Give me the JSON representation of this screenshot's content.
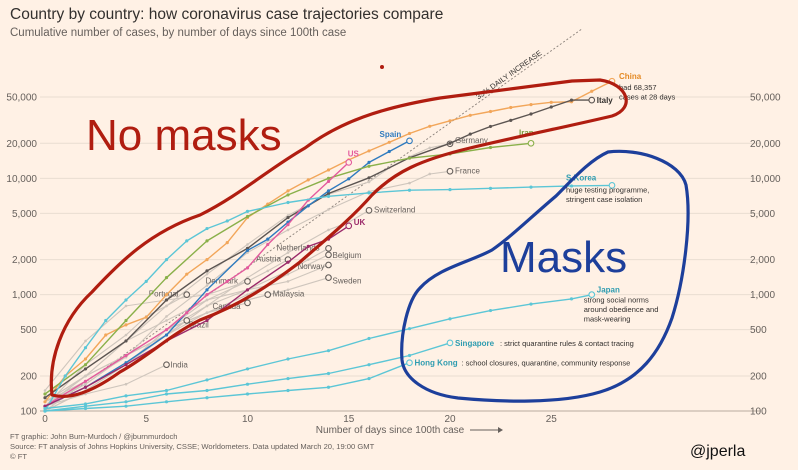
{
  "title": "Country by country: how coronavirus case trajectories compare",
  "subtitle": "Cumulative number of cases, by number of days since 100th case",
  "footer": [
    "FT graphic: John Burn-Murdoch / @jburnmurdoch",
    "Source: FT analysis of Johns Hopkins University, CSSE; Worldometers. Data updated March 20, 19:00 GMT",
    "© FT"
  ],
  "handle": "@jperla",
  "annotations": {
    "no_masks": "No masks",
    "masks": "Masks",
    "reference_line": "33% DAILY INCREASE",
    "x_arrow": "⟶"
  },
  "colors": {
    "background": "#fff1e5",
    "grid": "#e9ddd1",
    "no_masks_outline": "#b01d10",
    "masks_outline": "#1d3f9b",
    "grey_lines": "#cfc6bd",
    "teal": "#5cc6d6",
    "highlight_pink": "#d84c8c",
    "china": "#f2a65a",
    "spain": "#2f7bbf",
    "iran": "#8ab04a",
    "us": "#e45a9d",
    "uk": "#9b2a6a",
    "italy": "#5c5552"
  },
  "chart_data": {
    "type": "line",
    "title": "Country by country: how coronavirus case trajectories compare",
    "subtitle": "Cumulative number of cases, by number of days since 100th case",
    "xlabel": "Number of days since 100th case",
    "ylabel": "",
    "yscale": "log",
    "xlim": [
      0,
      31
    ],
    "ylim": [
      100,
      80000
    ],
    "xticks": [
      0,
      5,
      10,
      15,
      20,
      25
    ],
    "yticks": [
      100,
      200,
      500,
      1000,
      2000,
      5000,
      10000,
      20000,
      50000
    ],
    "ytick_labels": [
      "100",
      "200",
      "500",
      "1,000",
      "2,000",
      "5,000",
      "10,000",
      "20,000",
      "50,000"
    ],
    "grid": true,
    "reference_line": {
      "label": "33% DAILY INCREASE",
      "growth_rate": 1.33,
      "start": [
        0,
        100
      ]
    },
    "series": [
      {
        "name": "China",
        "color": "#f2a65a",
        "note": [
          "had 68,357",
          "cases at 28 days"
        ],
        "x": [
          0,
          1,
          2,
          3,
          4,
          5,
          6,
          7,
          8,
          9,
          10,
          11,
          12,
          13,
          14,
          15,
          16,
          17,
          18,
          19,
          20,
          21,
          22,
          23,
          24,
          25,
          26,
          27,
          28
        ],
        "y": [
          120,
          200,
          280,
          450,
          550,
          640,
          1000,
          1500,
          2000,
          2800,
          4600,
          6000,
          7800,
          9700,
          11800,
          14400,
          17200,
          20400,
          24300,
          28000,
          31200,
          34800,
          37500,
          40600,
          43000,
          45000,
          45500,
          56000,
          68357
        ]
      },
      {
        "name": "Italy",
        "color": "#5c5552",
        "x": [
          0,
          2,
          4,
          6,
          8,
          10,
          12,
          14,
          16,
          18,
          20,
          21,
          22,
          23,
          24,
          25,
          26,
          27
        ],
        "y": [
          130,
          230,
          400,
          900,
          1600,
          2500,
          4600,
          7400,
          10100,
          15000,
          20000,
          24000,
          27900,
          31500,
          35700,
          41000,
          47000,
          47000
        ]
      },
      {
        "name": "Spain",
        "color": "#2f7bbf",
        "x": [
          0,
          2,
          4,
          6,
          8,
          10,
          11,
          12,
          13,
          14,
          15,
          16,
          17,
          18
        ],
        "y": [
          110,
          160,
          260,
          450,
          1100,
          2400,
          3000,
          4200,
          5800,
          7800,
          9900,
          13700,
          17000,
          21000
        ]
      },
      {
        "name": "Iran",
        "color": "#8ab04a",
        "x": [
          0,
          2,
          4,
          6,
          8,
          10,
          12,
          14,
          16,
          18,
          20,
          22,
          24
        ],
        "y": [
          140,
          250,
          600,
          1400,
          2900,
          4700,
          7200,
          10000,
          12700,
          14900,
          16200,
          18400,
          20000
        ]
      },
      {
        "name": "US",
        "color": "#e45a9d",
        "x": [
          0,
          2,
          4,
          6,
          7,
          8,
          9,
          10,
          11,
          12,
          13,
          14,
          15
        ],
        "y": [
          110,
          180,
          300,
          500,
          700,
          1000,
          1300,
          1700,
          2700,
          4000,
          6500,
          9400,
          13700
        ]
      },
      {
        "name": "Germany",
        "color": "#cfc6bd",
        "x": [
          0,
          2,
          4,
          6,
          8,
          10,
          12,
          14,
          16,
          17,
          18,
          19,
          20
        ],
        "y": [
          120,
          200,
          400,
          800,
          1500,
          2700,
          4800,
          7300,
          9300,
          12300,
          15300,
          18300,
          19800
        ]
      },
      {
        "name": "France",
        "color": "#cfc6bd",
        "x": [
          0,
          2,
          4,
          6,
          8,
          10,
          12,
          14,
          16,
          18,
          19,
          20
        ],
        "y": [
          100,
          180,
          290,
          650,
          1200,
          2300,
          3600,
          5400,
          7700,
          9100,
          10900,
          11500
        ]
      },
      {
        "name": "S Korea",
        "color": "#5cc6d6",
        "note": [
          "huge testing programme,",
          "stringent case isolation"
        ],
        "x": [
          0,
          1,
          2,
          3,
          4,
          5,
          6,
          7,
          8,
          9,
          10,
          12,
          14,
          16,
          18,
          20,
          22,
          24,
          26,
          28
        ],
        "y": [
          100,
          200,
          350,
          600,
          900,
          1300,
          2000,
          2900,
          3700,
          4300,
          5200,
          6200,
          7000,
          7500,
          7900,
          8000,
          8200,
          8400,
          8600,
          8700
        ]
      },
      {
        "name": "Switzerland",
        "color": "#cfc6bd",
        "x": [
          0,
          2,
          4,
          6,
          8,
          10,
          12,
          14,
          15,
          16
        ],
        "y": [
          100,
          150,
          250,
          450,
          800,
          1400,
          2300,
          3600,
          4200,
          5300
        ]
      },
      {
        "name": "UK",
        "color": "#9b2a6a",
        "x": [
          0,
          2,
          4,
          6,
          8,
          10,
          12,
          13,
          14,
          15
        ],
        "y": [
          110,
          160,
          250,
          400,
          600,
          1100,
          1900,
          2600,
          3000,
          3900
        ]
      },
      {
        "name": "Netherlands",
        "color": "#cfc6bd",
        "x": [
          0,
          2,
          4,
          6,
          8,
          10,
          12,
          13,
          14
        ],
        "y": [
          120,
          170,
          300,
          500,
          800,
          1100,
          1600,
          2000,
          2500
        ]
      },
      {
        "name": "Austria",
        "color": "#cfc6bd",
        "x": [
          0,
          2,
          4,
          6,
          8,
          10,
          11,
          12
        ],
        "y": [
          110,
          160,
          250,
          500,
          900,
          1300,
          1600,
          2000
        ]
      },
      {
        "name": "Belgium",
        "color": "#cfc6bd",
        "x": [
          0,
          2,
          4,
          6,
          8,
          10,
          12,
          14
        ],
        "y": [
          110,
          170,
          300,
          450,
          700,
          1000,
          1500,
          2200
        ]
      },
      {
        "name": "Norway",
        "color": "#cfc6bd",
        "x": [
          0,
          2,
          4,
          6,
          8,
          10,
          12,
          14
        ],
        "y": [
          110,
          200,
          400,
          600,
          900,
          1100,
          1300,
          1800
        ]
      },
      {
        "name": "Sweden",
        "color": "#cfc6bd",
        "x": [
          0,
          2,
          4,
          6,
          8,
          10,
          12,
          14
        ],
        "y": [
          110,
          200,
          300,
          500,
          700,
          900,
          1100,
          1400
        ]
      },
      {
        "name": "Denmark",
        "color": "#cfc6bd",
        "x": [
          0,
          2,
          4,
          6,
          8,
          10
        ],
        "y": [
          150,
          400,
          800,
          900,
          1000,
          1300
        ]
      },
      {
        "name": "Portugal",
        "color": "#cfc6bd",
        "x": [
          0,
          2,
          4,
          5,
          6,
          7
        ],
        "y": [
          110,
          250,
          450,
          650,
          800,
          1000
        ]
      },
      {
        "name": "Malaysia",
        "color": "#cfc6bd",
        "x": [
          0,
          2,
          4,
          6,
          8,
          10,
          11
        ],
        "y": [
          120,
          180,
          300,
          500,
          700,
          900,
          1000
        ]
      },
      {
        "name": "Canada",
        "color": "#cfc6bd",
        "x": [
          0,
          2,
          4,
          6,
          8,
          10
        ],
        "y": [
          100,
          150,
          250,
          500,
          700,
          850
        ]
      },
      {
        "name": "Brazil",
        "color": "#cfc6bd",
        "x": [
          0,
          2,
          4,
          6,
          7
        ],
        "y": [
          120,
          200,
          300,
          450,
          600
        ]
      },
      {
        "name": "India",
        "color": "#cfc6bd",
        "x": [
          0,
          2,
          4,
          6
        ],
        "y": [
          110,
          140,
          170,
          250
        ]
      },
      {
        "name": "Japan",
        "color": "#5cc6d6",
        "note": [
          "strong social norms",
          "around obedience and",
          "mask-wearing"
        ],
        "x": [
          0,
          2,
          4,
          6,
          8,
          10,
          12,
          14,
          16,
          18,
          20,
          22,
          24,
          26,
          27
        ],
        "y": [
          105,
          115,
          135,
          150,
          185,
          230,
          280,
          330,
          420,
          510,
          620,
          730,
          830,
          920,
          1000
        ]
      },
      {
        "name": "Singapore",
        "color": "#5cc6d6",
        "note": [
          "strict quarantine rules & contact tracing"
        ],
        "x": [
          0,
          2,
          4,
          6,
          8,
          10,
          12,
          14,
          16,
          18,
          20
        ],
        "y": [
          100,
          110,
          120,
          140,
          150,
          170,
          190,
          210,
          250,
          300,
          385
        ]
      },
      {
        "name": "Hong Kong",
        "color": "#5cc6d6",
        "note": [
          "school closures, quarantine, community response"
        ],
        "x": [
          0,
          2,
          4,
          6,
          8,
          10,
          12,
          14,
          16,
          18
        ],
        "y": [
          100,
          105,
          110,
          120,
          130,
          140,
          150,
          160,
          190,
          260
        ]
      }
    ]
  }
}
